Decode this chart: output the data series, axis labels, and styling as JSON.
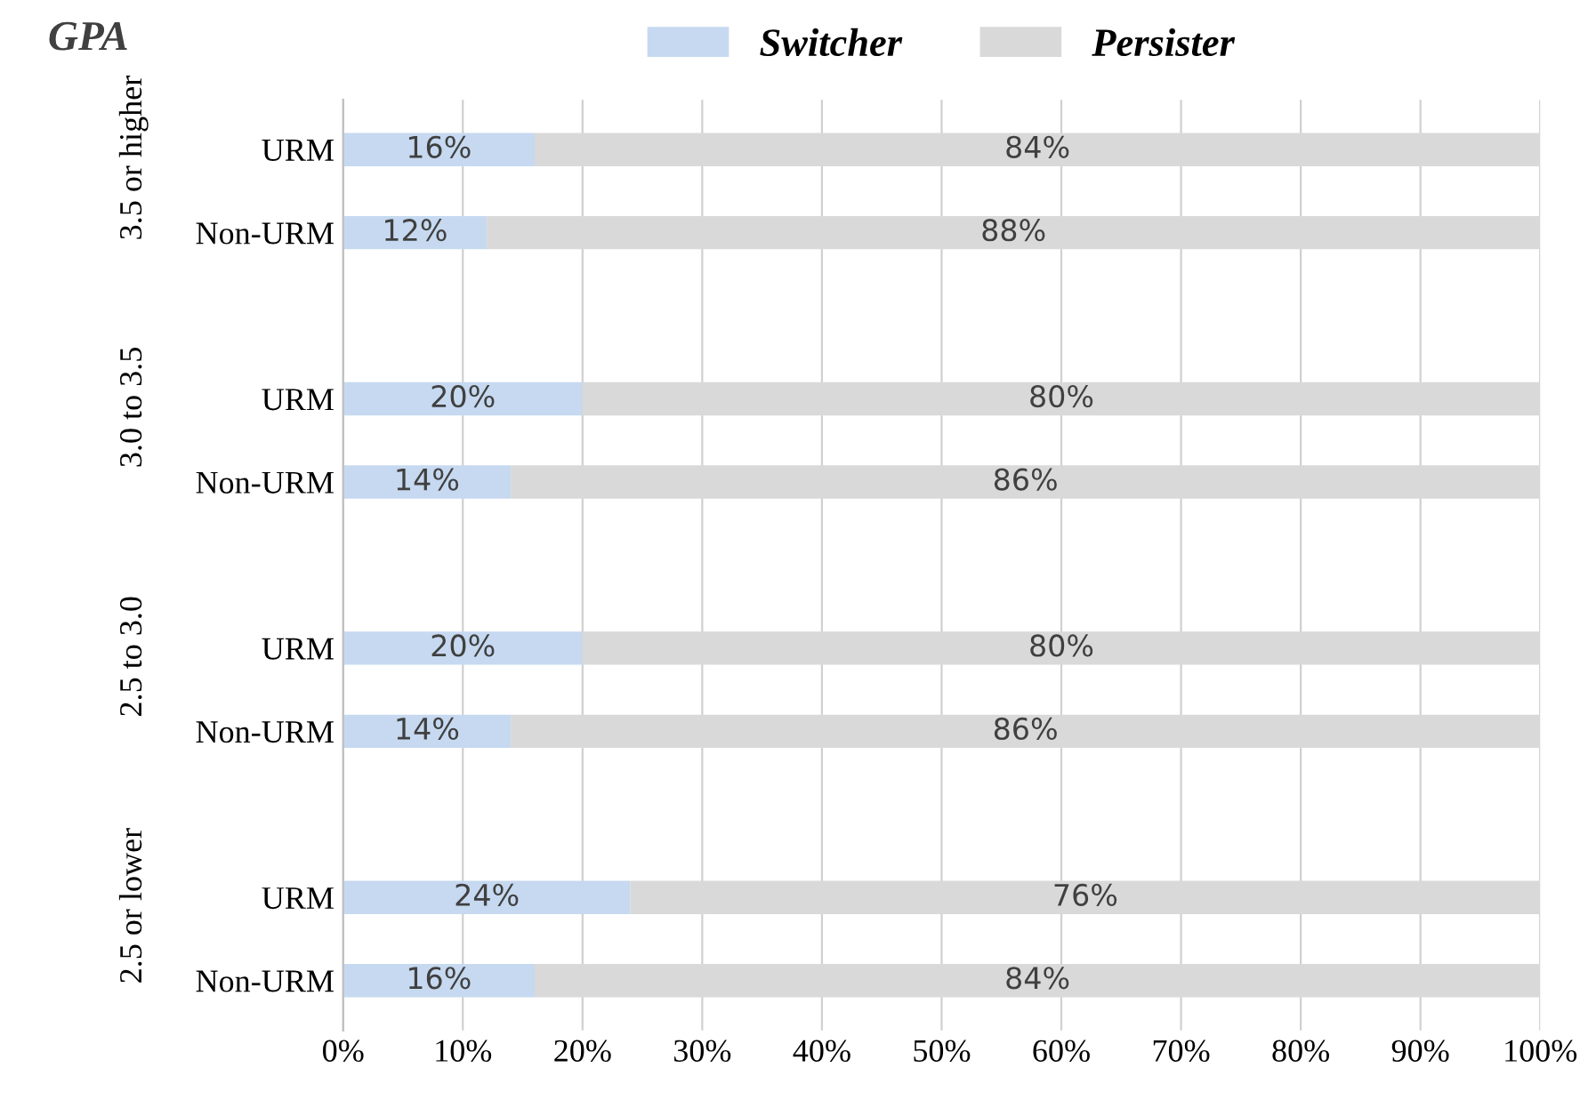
{
  "chart_data": {
    "type": "bar",
    "orientation": "horizontal",
    "stacked": true,
    "ylabel": "GPA",
    "categories": [
      "URM",
      "Non-URM",
      "URM",
      "Non-URM",
      "URM",
      "Non-URM",
      "URM",
      "Non-URM"
    ],
    "annotations": [
      "3.5 or higher",
      "3.0 to 3.5",
      "2.5 to 3.0",
      "2.5 or lower"
    ],
    "series": [
      {
        "name": "Switcher",
        "color": "#c6d9f0",
        "values": [
          16,
          12,
          20,
          14,
          20,
          14,
          24,
          16
        ],
        "value_labels": [
          "16%",
          "12%",
          "20%",
          "14%",
          "20%",
          "14%",
          "24%",
          "16%"
        ]
      },
      {
        "name": "Persister",
        "color": "#d9d9d9",
        "values": [
          84,
          88,
          80,
          86,
          80,
          86,
          76,
          84
        ],
        "value_labels": [
          "84%",
          "88%",
          "80%",
          "86%",
          "80%",
          "86%",
          "76%",
          "84%"
        ]
      }
    ],
    "legend": "top",
    "grid": "x",
    "xlim": [
      0,
      100
    ],
    "xticks": [
      {
        "value": 0,
        "label": "0%"
      },
      {
        "value": 10,
        "label": "10%"
      },
      {
        "value": 20,
        "label": "20%"
      },
      {
        "value": 30,
        "label": "30%"
      },
      {
        "value": 40,
        "label": "40%"
      },
      {
        "value": 50,
        "label": "50%"
      },
      {
        "value": 60,
        "label": "60%"
      },
      {
        "value": 70,
        "label": "70%"
      },
      {
        "value": 80,
        "label": "80%"
      },
      {
        "value": 90,
        "label": "90%"
      },
      {
        "value": 100,
        "label": "100%"
      }
    ]
  }
}
